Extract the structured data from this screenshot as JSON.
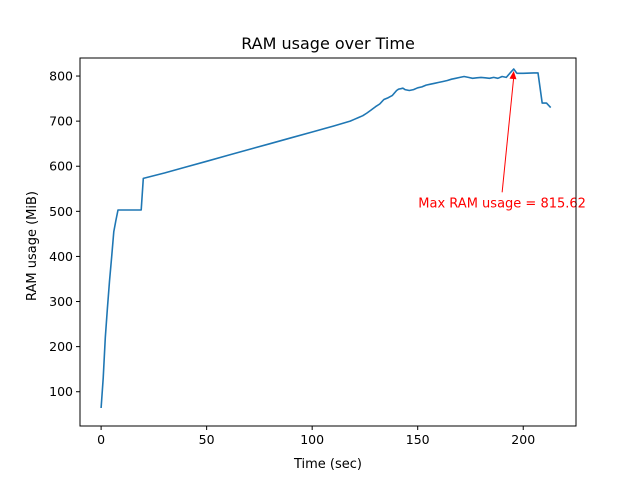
{
  "chart_data": {
    "type": "line",
    "title": "RAM usage over Time",
    "xlabel": "Time (sec)",
    "ylabel": "RAM usage (MiB)",
    "xlim": [
      -10,
      225
    ],
    "ylim": [
      24,
      840
    ],
    "xticks": [
      0,
      50,
      100,
      150,
      200
    ],
    "yticks": [
      100,
      200,
      300,
      400,
      500,
      600,
      700,
      800
    ],
    "grid": false,
    "series": [
      {
        "color": "#1f77b4",
        "x": [
          0,
          1,
          2,
          3,
          4,
          5,
          6,
          7,
          8,
          9,
          10,
          12,
          14,
          16,
          18,
          19,
          20,
          30,
          40,
          50,
          60,
          70,
          80,
          90,
          100,
          110,
          118,
          120,
          122,
          124,
          126,
          128,
          130,
          132,
          134,
          136,
          138,
          140,
          141,
          142,
          143,
          144,
          146,
          148,
          150,
          152,
          154,
          156,
          158,
          160,
          162,
          164,
          166,
          168,
          170,
          172,
          174,
          176,
          178,
          180,
          182,
          184,
          186,
          188,
          190,
          192,
          194,
          195.5,
          197,
          200,
          205,
          207,
          209,
          211,
          213
        ],
        "y": [
          64,
          130,
          220,
          285,
          345,
          400,
          455,
          480,
          503,
          503,
          503,
          503,
          503,
          503,
          503,
          503,
          573,
          585,
          598,
          611,
          624,
          637,
          650,
          663,
          676,
          689,
          700,
          704,
          708,
          712,
          718,
          725,
          732,
          738,
          748,
          752,
          757,
          768,
          771,
          772,
          773,
          770,
          768,
          770,
          774,
          776,
          780,
          782,
          784,
          786,
          788,
          790,
          793,
          795,
          797,
          799,
          797,
          795,
          796,
          797,
          796,
          795,
          797,
          795,
          799,
          797,
          808,
          815.62,
          806,
          806,
          807,
          807,
          740,
          740,
          730
        ]
      }
    ],
    "annotation": {
      "text": "Max RAM usage = 815.62",
      "color": "#ff0000",
      "point": [
        195.5,
        815.62
      ],
      "text_anchor": [
        190,
        520
      ]
    }
  }
}
